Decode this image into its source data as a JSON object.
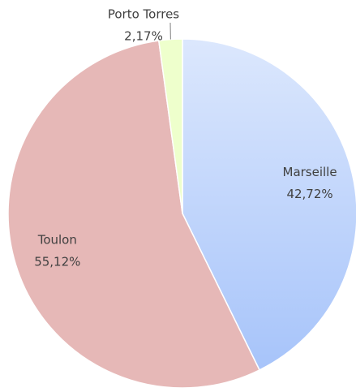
{
  "chart_data": {
    "type": "pie",
    "categories": [
      "Marseille",
      "Toulon",
      "Porto Torres"
    ],
    "values": [
      42.72,
      55.12,
      2.17
    ],
    "value_labels": [
      "42,72%",
      "55,12%",
      "2,17%"
    ],
    "colors": [
      "#a7c4fa",
      "#e6b8b7",
      "#eeffcc"
    ]
  }
}
